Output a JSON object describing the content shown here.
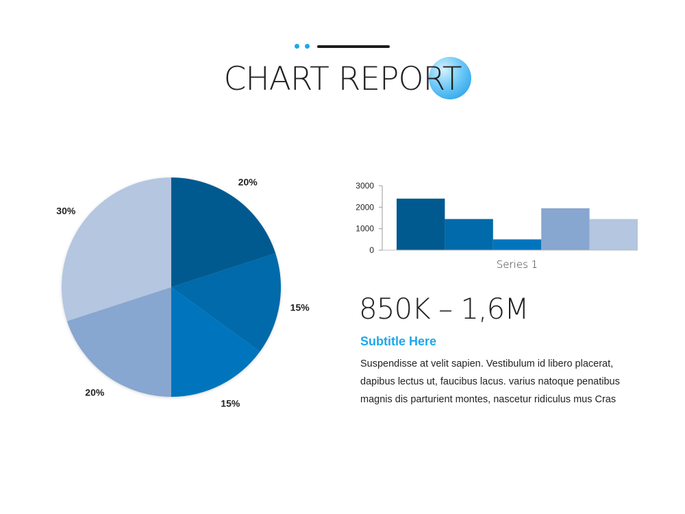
{
  "header": {
    "title": "CHART REPORT",
    "accent_color": "#1ea7ec",
    "line_color": "#1c1c1c"
  },
  "chart_data": [
    {
      "type": "pie",
      "values": [
        20,
        15,
        15,
        20,
        30
      ],
      "labels": [
        "20%",
        "15%",
        "15%",
        "20%",
        "30%"
      ],
      "colors": [
        "#005a90",
        "#006aaa",
        "#0075bd",
        "#87a6d0",
        "#b4c6e0"
      ],
      "start_angle": "12 o'clock",
      "direction": "clockwise"
    },
    {
      "type": "bar",
      "categories": [
        "Series 1"
      ],
      "series": [
        {
          "values": [
            2400
          ],
          "color": "#005a90"
        },
        {
          "values": [
            1450
          ],
          "color": "#006aaa"
        },
        {
          "values": [
            500
          ],
          "color": "#0075bd"
        },
        {
          "values": [
            1950
          ],
          "color": "#87a6d0"
        },
        {
          "values": [
            1450
          ],
          "color": "#b4c6e0"
        }
      ],
      "yticks": [
        "0",
        "1000",
        "2000",
        "3000"
      ],
      "ylim": [
        0,
        3000
      ],
      "grid": false,
      "legend": "none"
    }
  ],
  "info": {
    "big_number": "850K – 1,6M",
    "subtitle": "Subtitle Here",
    "body": "Suspendisse at velit sapien. Vestibulum id libero placerat, dapibus lectus ut, faucibus lacus. varius natoque penatibus magnis dis parturient montes, nascetur ridiculus mus Cras"
  }
}
